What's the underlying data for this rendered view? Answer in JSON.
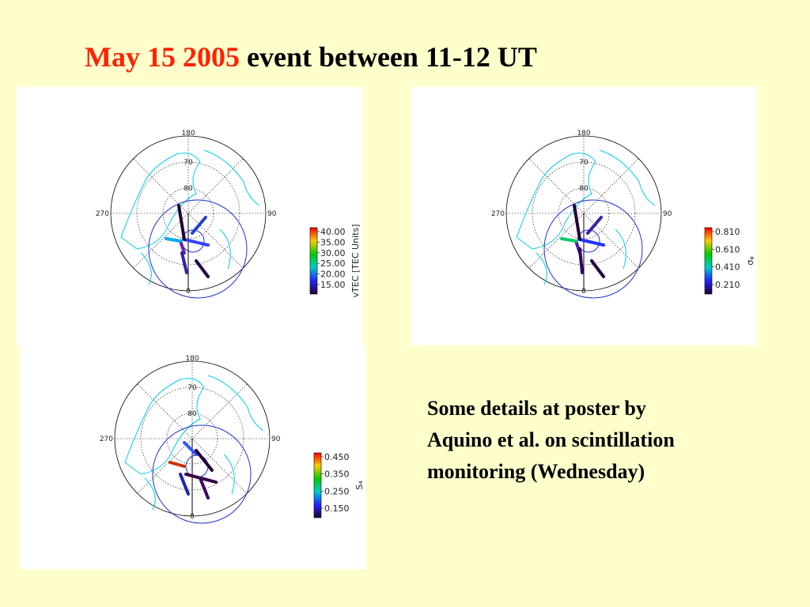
{
  "title": {
    "highlight": "May 15 2005",
    "rest": "event between 11-12 UT"
  },
  "panels": [
    {
      "labels": {
        "top": "180",
        "lat70": "70",
        "lat80": "80",
        "left": "270",
        "right": "90",
        "bottom": "0"
      },
      "colorbar": {
        "ticks": [
          "40.00",
          "35.00",
          "30.00",
          "25.00",
          "20.00",
          "15.00"
        ],
        "label": "vTEC [TEC Units]"
      }
    },
    {
      "labels": {
        "top": "180",
        "lat70": "70",
        "lat80": "80",
        "left": "270",
        "right": "90",
        "bottom": "0"
      },
      "colorbar": {
        "ticks": [
          "0.810",
          "0.610",
          "0.410",
          "0.210"
        ],
        "label": "σᵩ"
      }
    },
    {
      "labels": {
        "top": "180",
        "lat70": "70",
        "lat80": "80",
        "left": "270",
        "right": "90",
        "bottom": "0"
      },
      "colorbar": {
        "ticks": [
          "0.450",
          "0.350",
          "0.250",
          "0.150"
        ],
        "label": "S₄"
      }
    }
  ],
  "note": {
    "lines": [
      "Some details at poster by",
      "Aquino et al. on scintillation",
      "monitoring (Wednesday)"
    ]
  }
}
